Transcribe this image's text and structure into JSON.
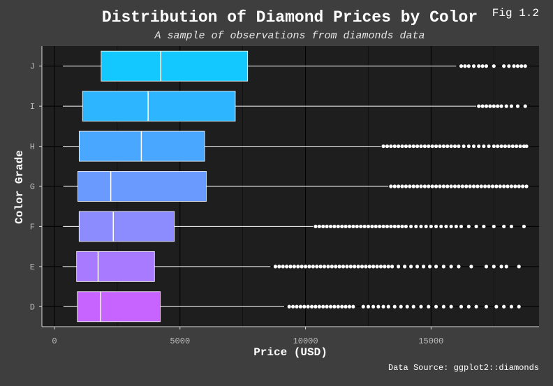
{
  "tag": "Fig 1.2",
  "caption": "Data Source: ggplot2::diamonds",
  "colors": {
    "background": "#3e3e3e",
    "panel": "#1e1e1e",
    "box_fills": [
      "#c764ff",
      "#a77aff",
      "#8c8cff",
      "#6b9aff",
      "#4aa7ff",
      "#2eb5ff",
      "#12c8ff"
    ]
  },
  "chart_data": {
    "type": "boxplot",
    "title": "Distribution of Diamond Prices by Color",
    "subtitle": "A sample of observations from diamonds data",
    "xlabel": "Price (USD)",
    "ylabel": "Color Grade",
    "xlim": [
      -500,
      19300
    ],
    "x_ticks": [
      0,
      5000,
      10000,
      15000
    ],
    "x_tick_labels": [
      "0",
      "5000",
      "10000",
      "15000"
    ],
    "orientation": "horizontal",
    "grid": true,
    "categories": [
      "D",
      "E",
      "F",
      "G",
      "H",
      "I",
      "J"
    ],
    "series": [
      {
        "category": "D",
        "min": 357,
        "q1": 911,
        "median": 1838,
        "q3": 4214,
        "whisker_high": 9150,
        "outliers": [
          9350,
          9500,
          9650,
          9800,
          9950,
          10100,
          10250,
          10400,
          10550,
          10700,
          10850,
          11000,
          11150,
          11300,
          11450,
          11600,
          11750,
          11900,
          12300,
          12500,
          12700,
          12900,
          13100,
          13300,
          13550,
          13800,
          14050,
          14300,
          14600,
          14900,
          15200,
          15500,
          15800,
          16200,
          16500,
          16800,
          17200,
          17600,
          17900,
          18200,
          18500
        ]
      },
      {
        "category": "E",
        "min": 326,
        "q1": 882,
        "median": 1739,
        "q3": 3985,
        "whisker_high": 8600,
        "outliers": [
          8800,
          8950,
          9100,
          9250,
          9400,
          9550,
          9700,
          9850,
          10000,
          10150,
          10300,
          10450,
          10600,
          10750,
          10900,
          11050,
          11200,
          11350,
          11500,
          11650,
          11800,
          11950,
          12100,
          12250,
          12400,
          12550,
          12700,
          12850,
          13000,
          13150,
          13300,
          13450,
          13700,
          13950,
          14200,
          14450,
          14700,
          14950,
          15200,
          15500,
          15800,
          16100,
          16600,
          17200,
          17500,
          17800,
          18000,
          18500
        ]
      },
      {
        "category": "F",
        "min": 342,
        "q1": 982,
        "median": 2344,
        "q3": 4772,
        "whisker_high": 10300,
        "outliers": [
          10400,
          10550,
          10700,
          10850,
          11000,
          11150,
          11300,
          11450,
          11600,
          11750,
          11900,
          12050,
          12200,
          12350,
          12500,
          12650,
          12800,
          12950,
          13100,
          13250,
          13400,
          13550,
          13700,
          13850,
          14000,
          14200,
          14400,
          14600,
          14800,
          15000,
          15200,
          15400,
          15600,
          15800,
          16000,
          16200,
          16500,
          16800,
          17100,
          17500,
          17900,
          18200,
          18700
        ]
      },
      {
        "category": "G",
        "min": 354,
        "q1": 931,
        "median": 2242,
        "q3": 6048,
        "whisker_high": 13300,
        "outliers": [
          13400,
          13550,
          13700,
          13850,
          14000,
          14150,
          14300,
          14450,
          14600,
          14750,
          14900,
          15050,
          15200,
          15350,
          15500,
          15650,
          15800,
          15950,
          16100,
          16250,
          16400,
          16550,
          16700,
          16850,
          17000,
          17150,
          17300,
          17450,
          17600,
          17750,
          17900,
          18050,
          18200,
          18350,
          18500,
          18650,
          18800
        ]
      },
      {
        "category": "H",
        "min": 337,
        "q1": 984,
        "median": 3460,
        "q3": 5980,
        "whisker_high": 13000,
        "outliers": [
          13100,
          13250,
          13400,
          13550,
          13700,
          13850,
          14000,
          14150,
          14300,
          14450,
          14600,
          14750,
          14900,
          15050,
          15200,
          15350,
          15500,
          15650,
          15800,
          15950,
          16100,
          16300,
          16500,
          16700,
          16900,
          17100,
          17300,
          17500,
          17650,
          17800,
          17950,
          18100,
          18250,
          18400,
          18550,
          18700,
          18800
        ]
      },
      {
        "category": "I",
        "min": 334,
        "q1": 1120,
        "median": 3730,
        "q3": 7202,
        "whisker_high": 16800,
        "outliers": [
          16900,
          17050,
          17200,
          17350,
          17500,
          17650,
          17800,
          18000,
          18200,
          18450,
          18750
        ]
      },
      {
        "category": "J",
        "min": 335,
        "q1": 1860,
        "median": 4234,
        "q3": 7695,
        "whisker_high": 16000,
        "outliers": [
          16200,
          16350,
          16500,
          16700,
          16900,
          17050,
          17200,
          17500,
          17900,
          18100,
          18300,
          18450,
          18600,
          18750
        ]
      }
    ]
  }
}
